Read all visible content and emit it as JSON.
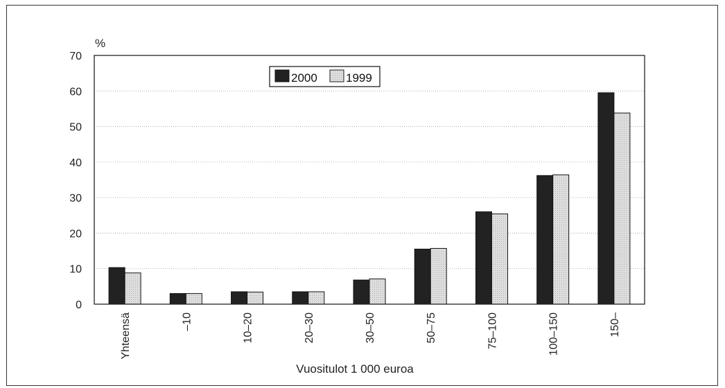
{
  "chart_data": {
    "type": "bar",
    "ylabel": "%",
    "xlabel": "Vuositulot 1 000 euroa",
    "ylim": [
      0,
      70
    ],
    "yticks": [
      "0",
      "10",
      "20",
      "30",
      "40",
      "50",
      "60",
      "70"
    ],
    "grid": true,
    "legend_position": "top-center",
    "categories": [
      "Yhteensä",
      "–10",
      "10–20",
      "20–30",
      "30–50",
      "50–75",
      "75–100",
      "100–150",
      "150–"
    ],
    "series": [
      {
        "name": "2000",
        "color": "#222222",
        "values": [
          10.3,
          3.0,
          3.5,
          3.5,
          6.8,
          15.5,
          26.0,
          36.2,
          59.5
        ]
      },
      {
        "name": "1999",
        "color": "#dcdcdc",
        "values": [
          8.8,
          3.0,
          3.4,
          3.5,
          7.1,
          15.7,
          25.4,
          36.4,
          53.8
        ]
      }
    ]
  }
}
